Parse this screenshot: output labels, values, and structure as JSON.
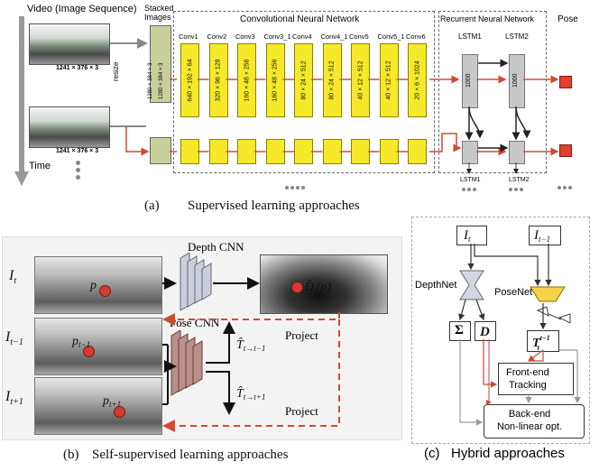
{
  "panel_a": {
    "video_label": "Video (Image Sequence)",
    "size_top": "1241 × 376 × 3",
    "size_bottom": "1241 × 376 × 3",
    "resize": "resize",
    "time": "Time",
    "stacked_images": "Stacked\nImages",
    "stack_dims": [
      "1280 × 384 × 3",
      "1280 × 384 × 3"
    ],
    "cnn_title": "Convolutional Neural Network",
    "conv_labels": [
      "Conv1",
      "Conv2",
      "Conv3",
      "Conv3_1",
      "Conv4",
      "Conv4_1",
      "Conv5",
      "Conv5_1",
      "Conv6"
    ],
    "conv_dims": [
      "640 × 192 × 64",
      "320 × 96 × 128",
      "160 × 48 × 256",
      "160 × 48 × 256",
      "80 × 24 × 512",
      "80 × 24 × 512",
      "40 × 12 × 512",
      "40 × 12 × 512",
      "20 × 6 × 1024"
    ],
    "rnn_title": "Recurrent Neural Network",
    "lstm_labels": [
      "LSTM1",
      "LSTM2"
    ],
    "lstm_dim": "1000",
    "pose_label": "Pose",
    "bottom_lstm": [
      "LSTM1",
      "LSTM2"
    ],
    "caption_letter": "(a)",
    "caption_text": "Supervised learning approaches"
  },
  "panel_b": {
    "depth_cnn": "Depth CNN",
    "pose_cnn": "Pose CNN",
    "project1": "Project",
    "project2": "Project",
    "caption_letter": "(b)",
    "caption_text": "Self-supervised learning approaches"
  },
  "panel_c": {
    "depthnet": "DepthNet",
    "posenet": "PoseNet",
    "frontend": "Front-end\nTracking",
    "backend": "Back-end\nNon-linear opt.",
    "sigma": "Σ",
    "caption_letter": "(c)",
    "caption_text": "Hybrid approaches"
  }
}
